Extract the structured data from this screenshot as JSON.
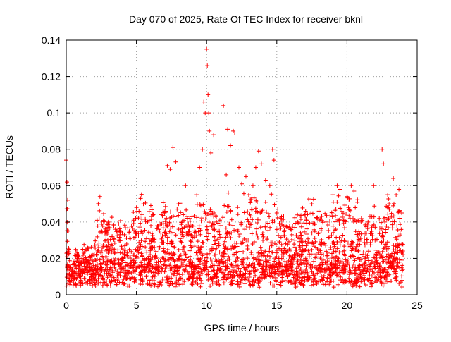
{
  "chart_data": {
    "type": "scatter",
    "title": "Day 070 of 2025, Rate Of TEC Index for receiver bknl",
    "xlabel": "GPS time / hours",
    "ylabel": "ROTI / TECUs",
    "xlim": [
      0,
      25
    ],
    "ylim": [
      0,
      0.14
    ],
    "x_ticks": [
      0,
      5,
      10,
      15,
      20,
      25
    ],
    "x_tick_labels": [
      "0",
      "5",
      "10",
      "15",
      "20",
      "25"
    ],
    "y_ticks": [
      0,
      0.02,
      0.04,
      0.06,
      0.08,
      0.1,
      0.12,
      0.14
    ],
    "y_tick_labels": [
      "0",
      "0.02",
      "0.04",
      "0.06",
      "0.08",
      "0.1",
      "0.12",
      "0.14"
    ],
    "grid": true,
    "legend": "none",
    "marker": "plus",
    "color": "#ff0000",
    "series": [
      {
        "x": [
          0.0,
          0.05,
          0.1,
          0.15,
          0.2,
          0.3,
          0.5,
          0.8,
          1.0,
          1.5,
          2.0,
          2.4,
          3.0,
          3.5,
          4.0,
          4.5,
          5.0,
          5.3,
          5.5,
          5.8,
          6.2,
          6.5,
          7.0,
          7.2,
          7.4,
          7.6,
          7.8,
          8.0,
          8.5,
          8.8,
          9.0,
          9.3,
          9.5,
          9.7,
          9.8,
          9.9,
          10.0,
          10.05,
          10.1,
          10.15,
          10.2,
          10.3,
          10.5,
          10.7,
          10.9,
          11.2,
          11.4,
          11.5,
          11.7,
          11.9,
          12.0,
          12.3,
          12.5,
          12.8,
          13.0,
          13.3,
          13.5,
          13.7,
          13.9,
          14.2,
          14.5,
          14.7,
          14.8,
          15.0,
          15.3,
          15.5,
          16.0,
          16.5,
          17.0,
          17.5,
          18.0,
          18.5,
          19.0,
          19.3,
          19.5,
          20.0,
          20.3,
          20.5,
          21.0,
          21.5,
          21.9,
          22.0,
          22.3,
          22.5,
          22.6,
          22.7,
          22.9,
          23.0,
          23.3,
          23.5,
          23.7,
          23.9,
          24.0
        ],
        "y": [
          0.074,
          0.062,
          0.052,
          0.035,
          0.025,
          0.015,
          0.012,
          0.02,
          0.018,
          0.026,
          0.022,
          0.054,
          0.04,
          0.036,
          0.034,
          0.035,
          0.048,
          0.053,
          0.05,
          0.04,
          0.044,
          0.038,
          0.045,
          0.071,
          0.069,
          0.081,
          0.073,
          0.05,
          0.06,
          0.042,
          0.038,
          0.055,
          0.07,
          0.08,
          0.106,
          0.1,
          0.135,
          0.126,
          0.11,
          0.1,
          0.09,
          0.078,
          0.088,
          0.04,
          0.035,
          0.104,
          0.066,
          0.091,
          0.082,
          0.09,
          0.089,
          0.07,
          0.061,
          0.065,
          0.055,
          0.06,
          0.07,
          0.079,
          0.072,
          0.063,
          0.06,
          0.08,
          0.074,
          0.045,
          0.042,
          0.038,
          0.036,
          0.04,
          0.044,
          0.05,
          0.046,
          0.04,
          0.055,
          0.06,
          0.058,
          0.054,
          0.06,
          0.057,
          0.04,
          0.04,
          0.06,
          0.03,
          0.042,
          0.08,
          0.072,
          0.04,
          0.055,
          0.05,
          0.064,
          0.055,
          0.058,
          0.045,
          0.022
        ]
      }
    ]
  }
}
